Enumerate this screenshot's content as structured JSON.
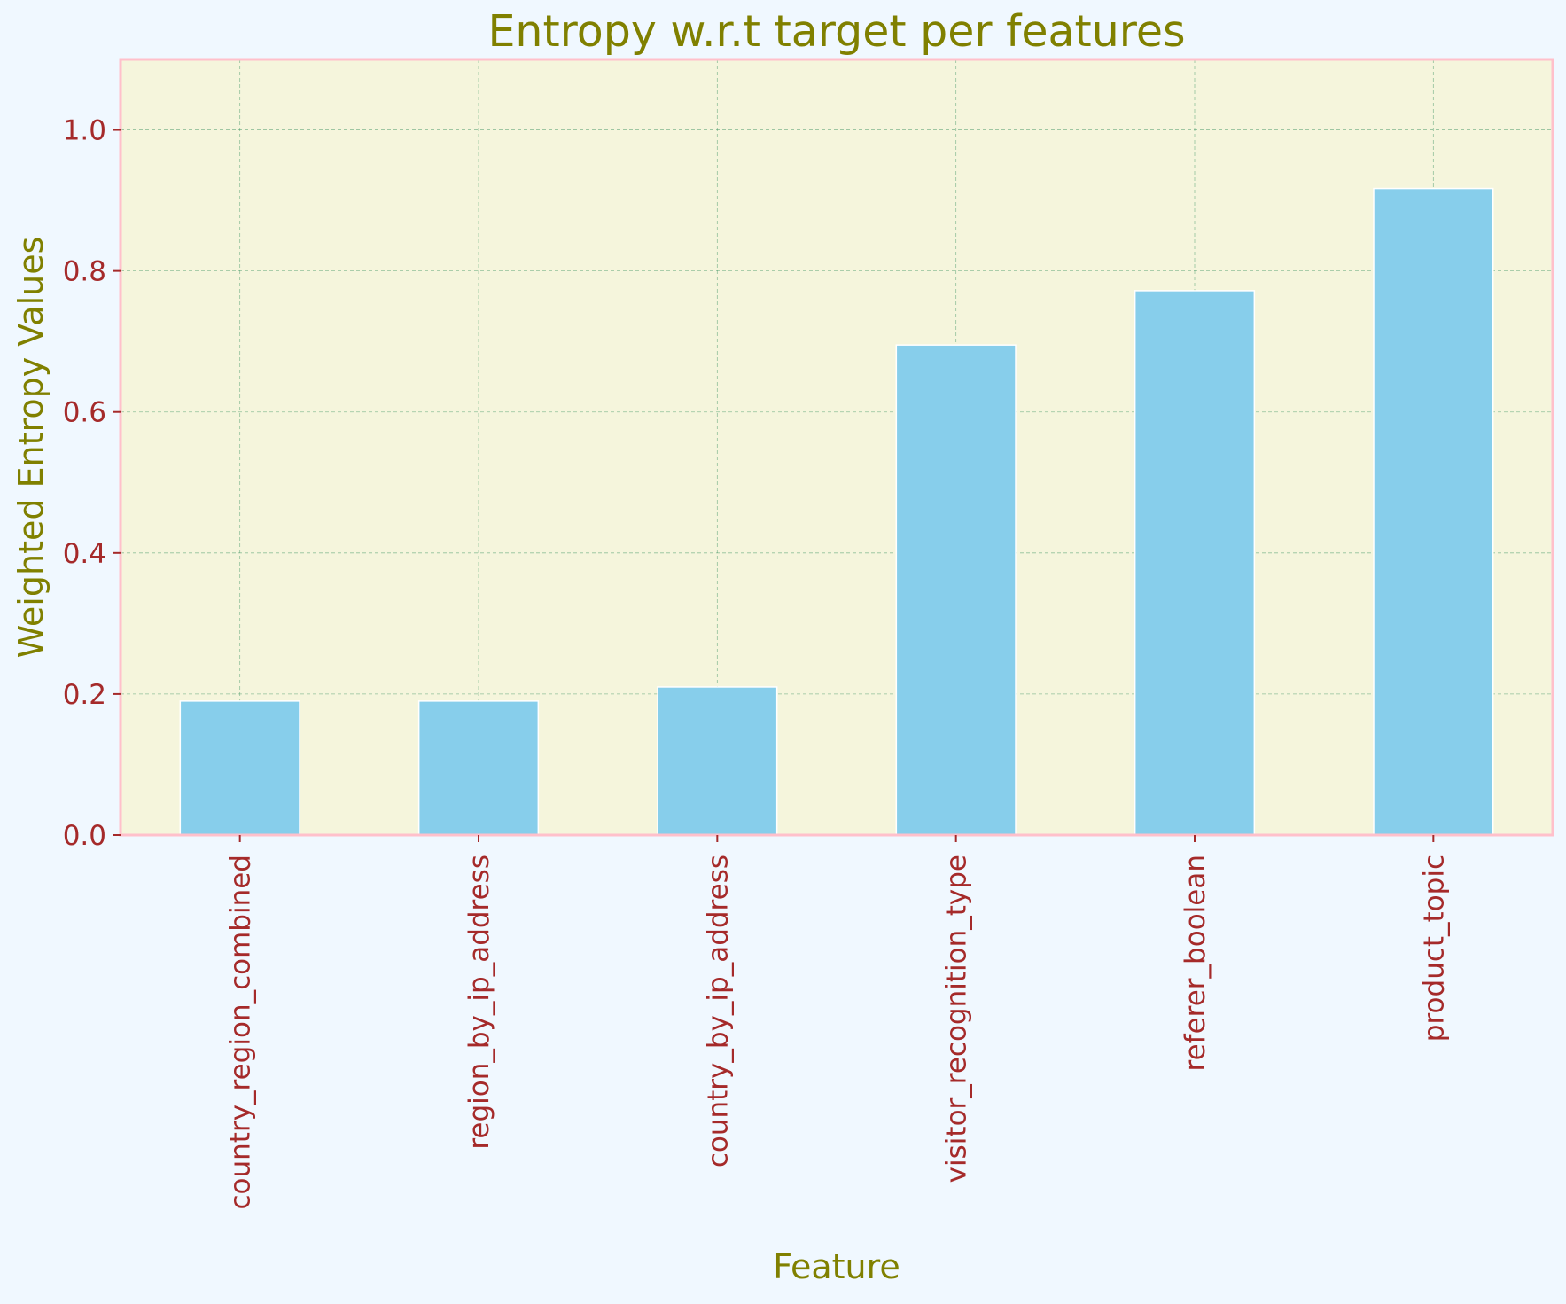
{
  "chart_data": {
    "type": "bar",
    "title": "Entropy w.r.t target per features",
    "xlabel": "Feature",
    "ylabel": "Weighted Entropy Values",
    "categories": [
      "country_region_combined",
      "region_by_ip_address",
      "country_by_ip_address",
      "visitor_recognition_type",
      "referer_boolean",
      "product_topic"
    ],
    "values": [
      0.19,
      0.19,
      0.21,
      0.695,
      0.772,
      0.917
    ],
    "ylim": [
      0,
      1.1
    ],
    "yticks": [
      0.0,
      0.2,
      0.4,
      0.6,
      0.8,
      1.0
    ],
    "ytick_labels": [
      "0.0",
      "0.2",
      "0.4",
      "0.6",
      "0.8",
      "1.0"
    ],
    "grid": true,
    "legend": "none",
    "colors": {
      "figure_background": "#f0f8ff",
      "plot_background": "#f5f5dc",
      "bar_fill": "#87ceeb",
      "bar_edge": "#ffffff",
      "frame": "#ffc0cb",
      "title": "#808000",
      "axis_label": "#808000",
      "tick_label": "#a52a2a",
      "grid": "#2e8b57"
    }
  }
}
